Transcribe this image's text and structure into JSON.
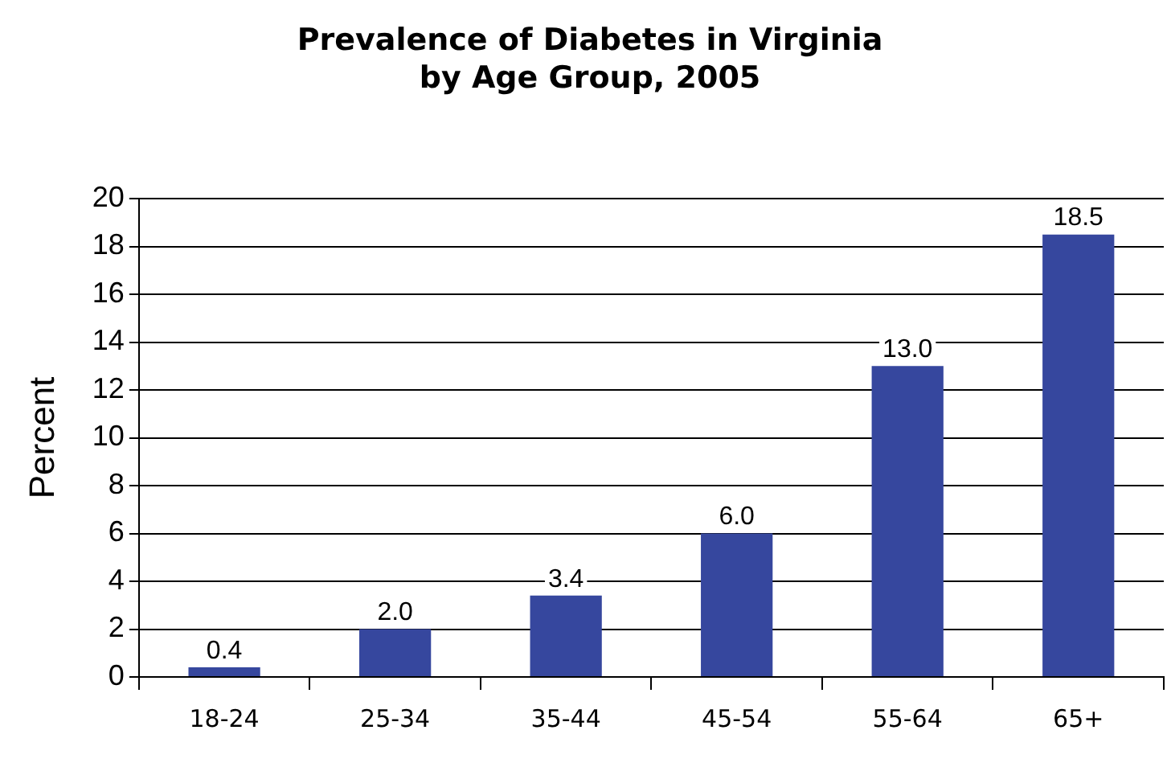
{
  "chart_data": {
    "type": "bar",
    "title": [
      "Prevalence of Diabetes in Virginia",
      "by Age Group, 2005"
    ],
    "ylabel": "Percent",
    "categories": [
      "18-24",
      "25-34",
      "35-44",
      "45-54",
      "55-64",
      "65+"
    ],
    "values": [
      0.4,
      2.0,
      3.4,
      6.0,
      13.0,
      18.5
    ],
    "value_labels": [
      "0.4",
      "2.0",
      "3.4",
      "6.0",
      "13.0",
      "18.5"
    ],
    "color": "#36479e",
    "ylim": [
      0,
      20
    ],
    "yticks": [
      0,
      2,
      4,
      6,
      8,
      10,
      12,
      14,
      16,
      18,
      20
    ],
    "grid": "y",
    "legend": false
  }
}
